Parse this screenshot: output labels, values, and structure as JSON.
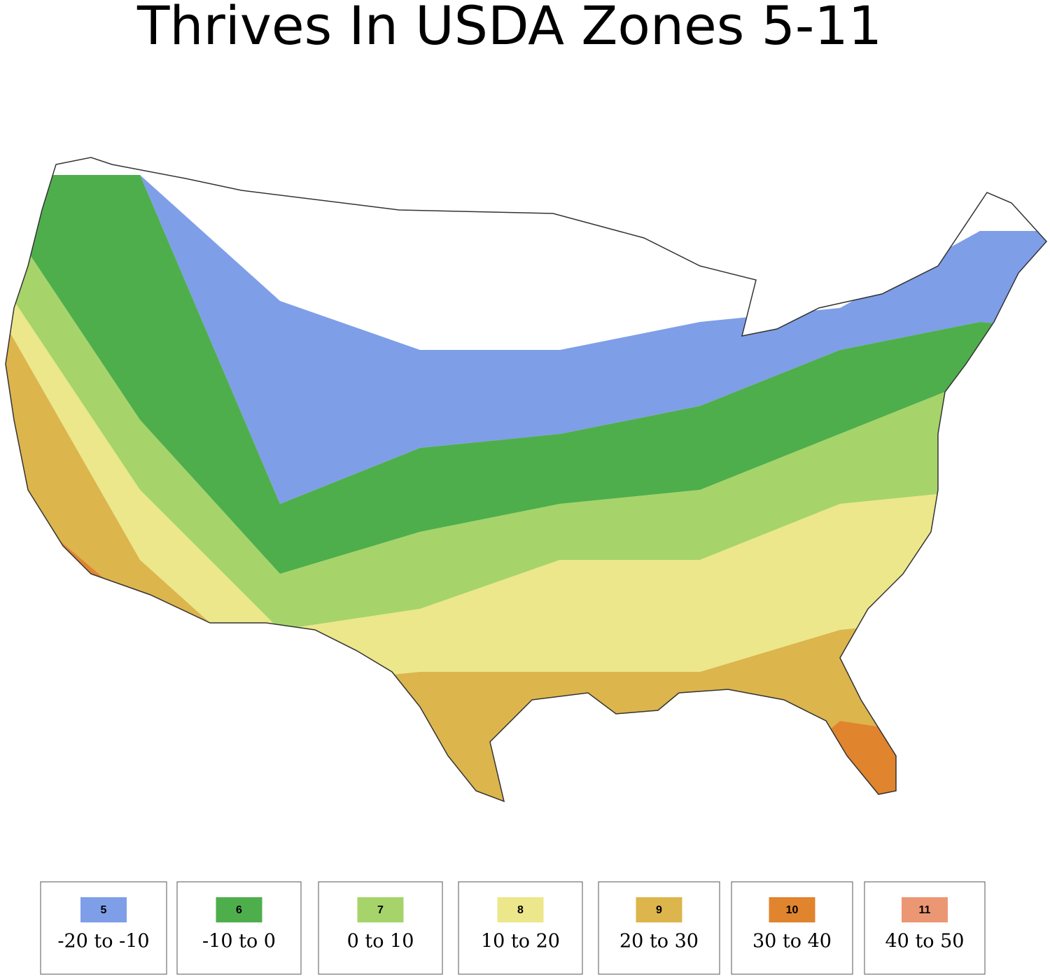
{
  "title": "Thrives In USDA Zones 5-11",
  "legend": [
    {
      "zone": "5",
      "range": "-20 to -10",
      "color": "#7f9ee8"
    },
    {
      "zone": "6",
      "range": "-10 to 0",
      "color": "#4fae4c"
    },
    {
      "zone": "7",
      "range": "0 to 10",
      "color": "#a6d46a"
    },
    {
      "zone": "8",
      "range": "10 to 20",
      "color": "#ece78a"
    },
    {
      "zone": "9",
      "range": "20 to 30",
      "color": "#dcb54c"
    },
    {
      "zone": "10",
      "range": "30 to 40",
      "color": "#e0842e"
    },
    {
      "zone": "11",
      "range": "40 to 50",
      "color": "#ec9774"
    }
  ]
}
